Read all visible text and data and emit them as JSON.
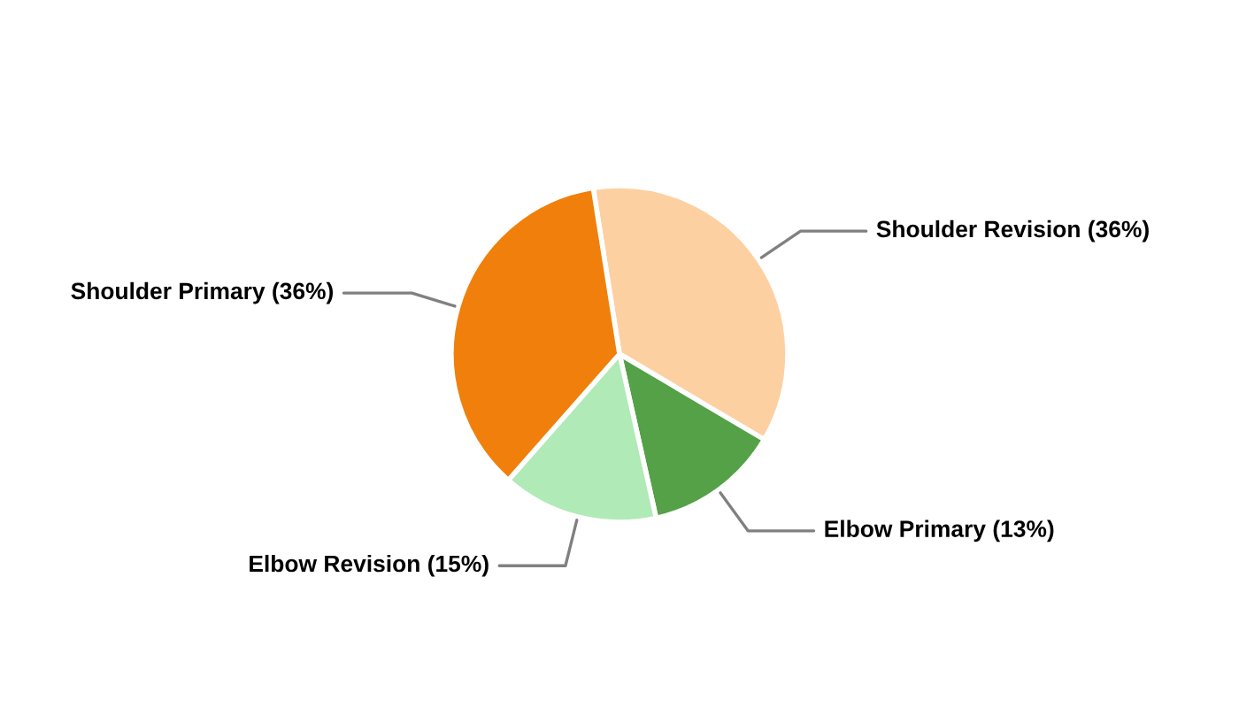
{
  "chart_data": {
    "type": "pie",
    "categories": [
      "Shoulder Revision (36%)",
      "Elbow Primary (13%)",
      "Elbow Revision (15%)",
      "Shoulder Primary (36%)"
    ],
    "values": [
      36,
      13,
      15,
      36
    ],
    "colors": [
      "#fdd0a2",
      "#54a147",
      "#b0eab6",
      "#f0800b"
    ],
    "legend": false
  }
}
